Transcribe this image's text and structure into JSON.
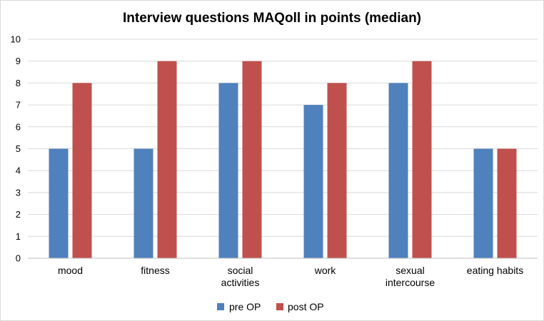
{
  "chart_data": {
    "type": "bar",
    "title": "Interview questions MAQoll in points (median)",
    "xlabel": "",
    "ylabel": "",
    "ylim": [
      0,
      10
    ],
    "yticks": [
      0,
      1,
      2,
      3,
      4,
      5,
      6,
      7,
      8,
      9,
      10
    ],
    "grid": true,
    "legend_position": "bottom",
    "categories": [
      [
        "mood"
      ],
      [
        "fitness"
      ],
      [
        "social",
        "activities"
      ],
      [
        "work"
      ],
      [
        "sexual",
        "intercourse"
      ],
      [
        "eating habits"
      ]
    ],
    "series": [
      {
        "name": "pre OP",
        "color": "#4f81bd",
        "values": [
          5,
          5,
          8,
          7,
          8,
          5
        ]
      },
      {
        "name": "post OP",
        "color": "#c0504d",
        "values": [
          8,
          9,
          9,
          8,
          9,
          5
        ]
      }
    ],
    "gridline_color": "#d9d9d9",
    "axis_color": "#bfbfbf"
  }
}
